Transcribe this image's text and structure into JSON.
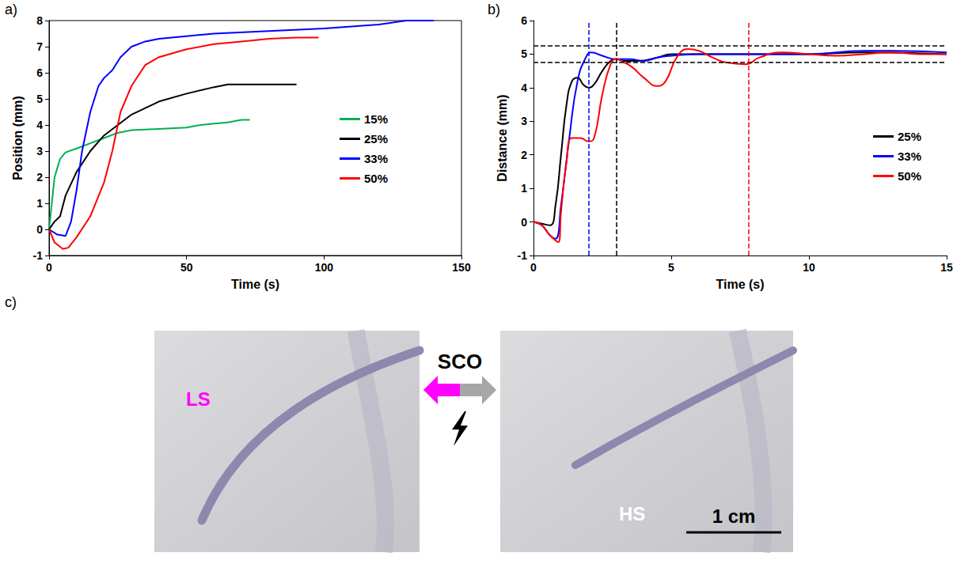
{
  "chart_data": [
    {
      "type": "line",
      "panel": "a)",
      "x_label": "Time (s)",
      "y_label": "Position (mm)",
      "xlim": [
        0,
        150
      ],
      "xticks": [
        0,
        50,
        100,
        150
      ],
      "ylim": [
        -1,
        8
      ],
      "yticks": [
        -1,
        0,
        1,
        2,
        3,
        4,
        5,
        6,
        7,
        8
      ],
      "grid": false,
      "legend": "right",
      "series": [
        {
          "name": "15%",
          "color": "#00b050",
          "marker": "none",
          "line_style": "solid",
          "x": [
            0,
            1,
            2,
            4,
            6,
            10,
            15,
            20,
            25,
            30,
            40,
            50,
            55,
            60,
            65,
            70,
            73
          ],
          "values": [
            0,
            1,
            2,
            2.7,
            2.95,
            3.1,
            3.3,
            3.5,
            3.7,
            3.8,
            3.85,
            3.9,
            4.0,
            4.05,
            4.1,
            4.2,
            4.2
          ]
        },
        {
          "name": "25%",
          "color": "#000000",
          "marker": "none",
          "line_style": "solid",
          "x": [
            0,
            2,
            4,
            6,
            10,
            15,
            20,
            25,
            30,
            40,
            50,
            60,
            65,
            70,
            80,
            90
          ],
          "values": [
            0,
            0.3,
            0.5,
            1.3,
            2.2,
            3.0,
            3.6,
            4.0,
            4.4,
            4.9,
            5.2,
            5.45,
            5.55,
            5.55,
            5.55,
            5.55
          ]
        },
        {
          "name": "33%",
          "color": "#0000ff",
          "marker": "none",
          "line_style": "solid",
          "x": [
            0,
            3,
            6,
            8,
            10,
            12,
            15,
            18,
            20,
            23,
            26,
            30,
            35,
            40,
            50,
            60,
            80,
            100,
            120,
            130,
            140
          ],
          "values": [
            0,
            -0.2,
            -0.25,
            0.3,
            1.5,
            3.0,
            4.5,
            5.5,
            5.8,
            6.1,
            6.6,
            7.0,
            7.2,
            7.3,
            7.4,
            7.5,
            7.6,
            7.7,
            7.85,
            8.0,
            8.0
          ]
        },
        {
          "name": "50%",
          "color": "#ff0000",
          "marker": "none",
          "line_style": "solid",
          "x": [
            0,
            2,
            5,
            7,
            10,
            15,
            20,
            23,
            26,
            30,
            35,
            40,
            50,
            60,
            70,
            80,
            90,
            98
          ],
          "values": [
            0,
            -0.5,
            -0.75,
            -0.7,
            -0.3,
            0.5,
            1.8,
            3.0,
            4.5,
            5.5,
            6.3,
            6.6,
            6.9,
            7.1,
            7.2,
            7.3,
            7.35,
            7.35
          ]
        }
      ]
    },
    {
      "type": "line",
      "panel": "b)",
      "x_label": "Time (s)",
      "y_label": "Distance (mm)",
      "xlim": [
        0,
        15
      ],
      "xticks": [
        0,
        5,
        10,
        15
      ],
      "ylim": [
        -1,
        6
      ],
      "yticks": [
        -1,
        0,
        1,
        2,
        3,
        4,
        5,
        6
      ],
      "grid": false,
      "legend": "right",
      "reference_lines": {
        "line_style": "dashed",
        "y": [
          {
            "value": 4.75,
            "color": "#000000"
          },
          {
            "value": 5.25,
            "color": "#000000"
          }
        ],
        "x": [
          {
            "value": 2,
            "color": "#0000ff"
          },
          {
            "value": 3,
            "color": "#000000"
          },
          {
            "value": 7.8,
            "color": "#ff0000"
          }
        ]
      },
      "series": [
        {
          "name": "25%",
          "color": "#000000",
          "marker": "none",
          "line_style": "smooth",
          "x": [
            0,
            0.3,
            0.6,
            0.8,
            1.0,
            1.2,
            1.4,
            1.6,
            1.8,
            2.0,
            2.2,
            2.5,
            2.8,
            3.0,
            3.3,
            3.8,
            4.5,
            5,
            6,
            8,
            10,
            12,
            15
          ],
          "values": [
            0,
            -0.05,
            -0.1,
            0.5,
            2.0,
            3.5,
            4.2,
            4.3,
            4.1,
            4.0,
            4.1,
            4.5,
            4.8,
            4.85,
            4.8,
            4.8,
            4.9,
            5.0,
            5.0,
            5.0,
            5.0,
            5.05,
            5.0
          ]
        },
        {
          "name": "33%",
          "color": "#0000ff",
          "marker": "none",
          "line_style": "smooth",
          "x": [
            0,
            0.3,
            0.6,
            0.8,
            1.0,
            1.3,
            1.6,
            1.9,
            2.1,
            2.5,
            3,
            3.5,
            4,
            4.5,
            5,
            6,
            8,
            10,
            12,
            13,
            15
          ],
          "values": [
            0,
            -0.1,
            -0.4,
            -0.5,
            0.5,
            2.5,
            4.2,
            4.9,
            5.05,
            4.95,
            4.85,
            4.85,
            4.8,
            4.9,
            4.95,
            5.0,
            5.0,
            5.0,
            5.1,
            5.1,
            5.05
          ]
        },
        {
          "name": "50%",
          "color": "#ff0000",
          "marker": "none",
          "line_style": "smooth",
          "x": [
            0,
            0.3,
            0.6,
            0.9,
            1.0,
            1.2,
            1.4,
            1.7,
            2.0,
            2.2,
            2.5,
            2.8,
            3.0,
            3.3,
            3.6,
            4.0,
            4.5,
            4.8,
            5.2,
            5.6,
            6,
            6.5,
            7,
            7.7,
            8.2,
            9,
            10,
            11,
            12,
            13,
            14,
            15
          ],
          "values": [
            0,
            -0.1,
            -0.4,
            -0.6,
            0.3,
            1.8,
            2.5,
            2.5,
            2.4,
            2.5,
            3.8,
            4.7,
            4.85,
            4.75,
            4.6,
            4.3,
            4.05,
            4.2,
            4.9,
            5.15,
            5.1,
            4.9,
            4.75,
            4.7,
            4.9,
            5.05,
            5.0,
            4.95,
            5.0,
            5.05,
            5.0,
            5.0
          ]
        }
      ]
    }
  ],
  "panel_c": {
    "panel": "c)",
    "transition": "SCO",
    "scale_bar": "1 cm",
    "states": [
      {
        "label": "LS",
        "color": "#ff00ff"
      },
      {
        "label": "HS",
        "color": "#ffffff"
      }
    ],
    "arrow_colors": [
      "#ff00ff",
      "#a6a6a6"
    ]
  }
}
